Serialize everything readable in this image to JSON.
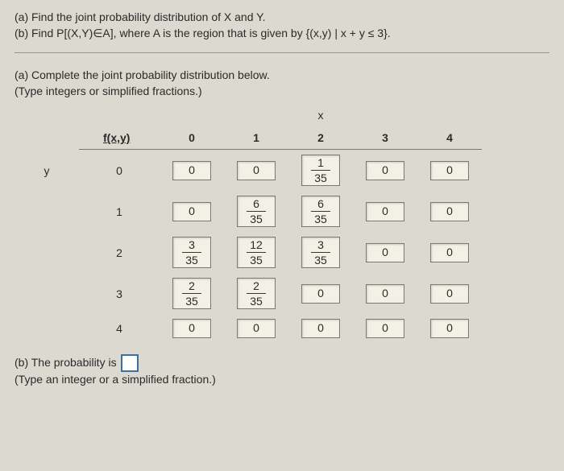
{
  "partA_prefix": "(a) Find the joint probability distribution of X and Y.",
  "partB_line": "(b) Find P[(X,Y)∈A], where A is the region that is given by {(x,y) | x + y ≤ 3}.",
  "partA_heading": "(a) Complete the joint probability distribution below.",
  "partA_sub": "(Type integers or simplified fractions.)",
  "header": {
    "fxy": "f(x,y)",
    "x": "x",
    "y": "y",
    "cols": [
      "0",
      "1",
      "2",
      "3",
      "4"
    ]
  },
  "rows": [
    "0",
    "1",
    "2",
    "3",
    "4"
  ],
  "cells": [
    [
      {
        "t": "int",
        "v": "0"
      },
      {
        "t": "int",
        "v": "0"
      },
      {
        "t": "frac",
        "n": "1",
        "d": "35"
      },
      {
        "t": "int",
        "v": "0"
      },
      {
        "t": "int",
        "v": "0"
      }
    ],
    [
      {
        "t": "int",
        "v": "0"
      },
      {
        "t": "frac",
        "n": "6",
        "d": "35"
      },
      {
        "t": "frac",
        "n": "6",
        "d": "35"
      },
      {
        "t": "int",
        "v": "0"
      },
      {
        "t": "int",
        "v": "0"
      }
    ],
    [
      {
        "t": "frac",
        "n": "3",
        "d": "35"
      },
      {
        "t": "frac",
        "n": "12",
        "d": "35"
      },
      {
        "t": "frac",
        "n": "3",
        "d": "35"
      },
      {
        "t": "int",
        "v": "0"
      },
      {
        "t": "int",
        "v": "0"
      }
    ],
    [
      {
        "t": "frac",
        "n": "2",
        "d": "35"
      },
      {
        "t": "frac",
        "n": "2",
        "d": "35"
      },
      {
        "t": "int",
        "v": "0"
      },
      {
        "t": "int",
        "v": "0"
      },
      {
        "t": "int",
        "v": "0"
      }
    ],
    [
      {
        "t": "int",
        "v": "0"
      },
      {
        "t": "int",
        "v": "0"
      },
      {
        "t": "int",
        "v": "0"
      },
      {
        "t": "int",
        "v": "0"
      },
      {
        "t": "int",
        "v": "0"
      }
    ]
  ],
  "partB_answer_prefix": "(b) The probability is ",
  "partB_answer_suffix": "",
  "partB_hint": "(Type an integer or a simplified fraction.)",
  "style": {
    "background": "#dcd9d0",
    "cell_bg": "#f3f0e5",
    "border": "#7a7a72",
    "answer_box_border": "#3b6fa0",
    "font_family": "Arial",
    "base_fontsize_pt": 11
  }
}
